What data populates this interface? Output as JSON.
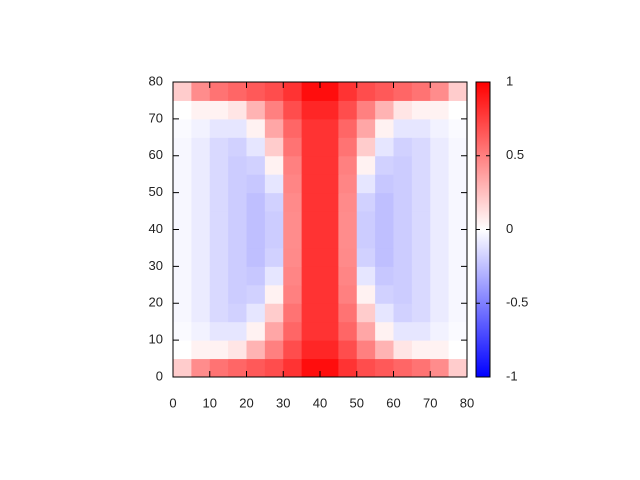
{
  "chart_data": {
    "type": "heatmap",
    "x": [
      2.5,
      7.5,
      12.5,
      17.5,
      22.5,
      27.5,
      32.5,
      37.5,
      42.5,
      47.5,
      52.5,
      57.5,
      62.5,
      67.5,
      72.5,
      77.5
    ],
    "y": [
      2.5,
      7.5,
      12.5,
      17.5,
      22.5,
      27.5,
      32.5,
      37.5,
      42.5,
      47.5,
      52.5,
      57.5,
      62.5,
      67.5,
      72.5,
      77.5
    ],
    "z": [
      [
        0.2,
        0.45,
        0.55,
        0.6,
        0.65,
        0.7,
        0.8,
        0.95,
        0.95,
        0.8,
        0.7,
        0.65,
        0.6,
        0.55,
        0.45,
        0.2
      ],
      [
        0,
        0.05,
        0.05,
        0.1,
        0.3,
        0.5,
        0.7,
        0.85,
        0.85,
        0.7,
        0.5,
        0.3,
        0.1,
        0.05,
        0.05,
        0
      ],
      [
        -0.02,
        -0.05,
        -0.1,
        -0.1,
        0.05,
        0.35,
        0.6,
        0.8,
        0.8,
        0.6,
        0.35,
        0.05,
        -0.1,
        -0.1,
        -0.05,
        -0.02
      ],
      [
        -0.03,
        -0.08,
        -0.15,
        -0.18,
        -0.1,
        0.2,
        0.55,
        0.8,
        0.8,
        0.55,
        0.2,
        -0.1,
        -0.18,
        -0.15,
        -0.08,
        -0.03
      ],
      [
        -0.03,
        -0.08,
        -0.15,
        -0.2,
        -0.18,
        0.05,
        0.5,
        0.8,
        0.8,
        0.5,
        0.05,
        -0.18,
        -0.2,
        -0.15,
        -0.08,
        -0.03
      ],
      [
        -0.03,
        -0.08,
        -0.15,
        -0.2,
        -0.22,
        -0.1,
        0.48,
        0.8,
        0.8,
        0.48,
        -0.1,
        -0.22,
        -0.2,
        -0.15,
        -0.08,
        -0.03
      ],
      [
        -0.03,
        -0.08,
        -0.15,
        -0.2,
        -0.25,
        -0.18,
        0.46,
        0.8,
        0.8,
        0.46,
        -0.18,
        -0.25,
        -0.2,
        -0.15,
        -0.08,
        -0.03
      ],
      [
        -0.03,
        -0.08,
        -0.15,
        -0.2,
        -0.25,
        -0.2,
        0.45,
        0.8,
        0.8,
        0.45,
        -0.2,
        -0.25,
        -0.2,
        -0.15,
        -0.08,
        -0.03
      ],
      [
        -0.03,
        -0.08,
        -0.15,
        -0.2,
        -0.25,
        -0.2,
        0.45,
        0.8,
        0.8,
        0.45,
        -0.2,
        -0.25,
        -0.2,
        -0.15,
        -0.08,
        -0.03
      ],
      [
        -0.03,
        -0.08,
        -0.15,
        -0.2,
        -0.25,
        -0.18,
        0.46,
        0.8,
        0.8,
        0.46,
        -0.18,
        -0.25,
        -0.2,
        -0.15,
        -0.08,
        -0.03
      ],
      [
        -0.03,
        -0.08,
        -0.15,
        -0.2,
        -0.22,
        -0.1,
        0.48,
        0.8,
        0.8,
        0.48,
        -0.1,
        -0.22,
        -0.2,
        -0.15,
        -0.08,
        -0.03
      ],
      [
        -0.03,
        -0.08,
        -0.15,
        -0.2,
        -0.18,
        0.05,
        0.5,
        0.8,
        0.8,
        0.5,
        0.05,
        -0.18,
        -0.2,
        -0.15,
        -0.08,
        -0.03
      ],
      [
        -0.03,
        -0.08,
        -0.15,
        -0.18,
        -0.1,
        0.2,
        0.55,
        0.8,
        0.8,
        0.55,
        0.2,
        -0.1,
        -0.18,
        -0.15,
        -0.08,
        -0.03
      ],
      [
        -0.02,
        -0.05,
        -0.1,
        -0.1,
        0.05,
        0.35,
        0.6,
        0.8,
        0.8,
        0.6,
        0.35,
        0.05,
        -0.1,
        -0.1,
        -0.05,
        -0.02
      ],
      [
        0,
        0.05,
        0.05,
        0.1,
        0.3,
        0.5,
        0.7,
        0.85,
        0.85,
        0.7,
        0.5,
        0.3,
        0.1,
        0.05,
        0.05,
        0
      ],
      [
        0.2,
        0.45,
        0.55,
        0.6,
        0.65,
        0.7,
        0.8,
        0.95,
        0.95,
        0.8,
        0.7,
        0.65,
        0.6,
        0.55,
        0.45,
        0.2
      ]
    ],
    "xlim": [
      0,
      80
    ],
    "ylim": [
      0,
      80
    ],
    "xticks": [
      0,
      10,
      20,
      30,
      40,
      50,
      60,
      70,
      80
    ],
    "yticks": [
      0,
      10,
      20,
      30,
      40,
      50,
      60,
      70,
      80
    ],
    "zlim": [
      -1,
      1
    ],
    "zticks": [
      -1,
      -0.5,
      0,
      0.5,
      1
    ],
    "colors": [
      "#0000ff",
      "#ffffff",
      "#ff0000"
    ]
  }
}
